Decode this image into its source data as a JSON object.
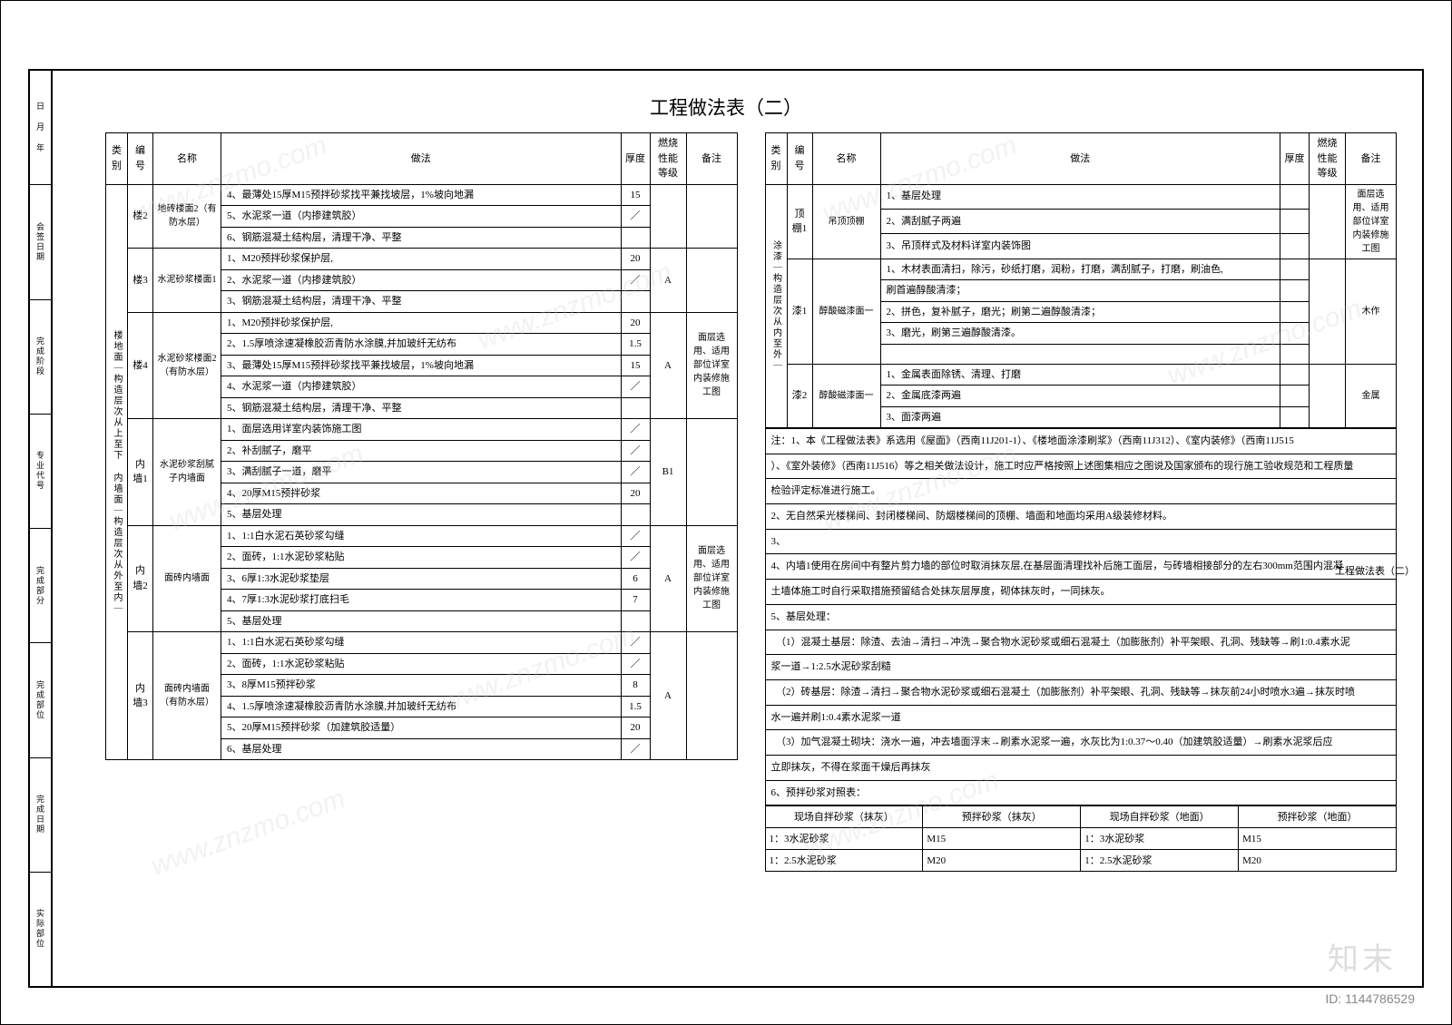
{
  "title": "工程做法表（二）",
  "rtitle": "工程做法表（二）",
  "id_mark": "ID: 1144786529",
  "logo": "知末",
  "side_labels": [
    "日 月 年",
    "会签日期",
    "完成阶段",
    "专业代号",
    "完成部分",
    "完成部位",
    "完成日期",
    "实际部位"
  ],
  "headers": {
    "cat": "类别",
    "num": "编号",
    "name": "名称",
    "method": "做法",
    "thk": "厚度",
    "fire": "燃烧性能等级",
    "note": "备注"
  },
  "left_cat": "楼地面｜构造层次从上至下 内墙面｜构造层次从外至内｜",
  "left": [
    {
      "num": "楼2",
      "name": "地砖楼面2（有防水层）",
      "rows": [
        {
          "m": "4、最薄处15厚M15预拌砂浆找平兼找坡层，1%坡向地漏",
          "t": "15"
        },
        {
          "m": "5、水泥浆一道（内掺建筑胶）",
          "t": "／"
        },
        {
          "m": "6、钢筋混凝土结构层，清理干净、平整",
          "t": ""
        }
      ],
      "fire": "",
      "note": ""
    },
    {
      "num": "楼3",
      "name": "水泥砂浆楼面1",
      "rows": [
        {
          "m": "1、M20预拌砂浆保护层,",
          "t": "20"
        },
        {
          "m": "2、水泥浆一道（内掺建筑胶）",
          "t": "／"
        },
        {
          "m": "3、钢筋混凝土结构层，清理干净、平整",
          "t": ""
        }
      ],
      "fire": "A",
      "note": ""
    },
    {
      "num": "楼4",
      "name": "水泥砂浆楼面2（有防水层）",
      "rows": [
        {
          "m": "1、M20预拌砂浆保护层,",
          "t": "20"
        },
        {
          "m": "2、1.5厚喷涂速凝橡胶沥青防水涂膜,并加玻纤无纺布",
          "t": "1.5"
        },
        {
          "m": "3、最薄处15厚M15预拌砂浆找平兼找坡层，1%坡向地漏",
          "t": "15"
        },
        {
          "m": "4、水泥浆一道（内掺建筑胶）",
          "t": "／"
        },
        {
          "m": "5、钢筋混凝土结构层，清理干净、平整",
          "t": ""
        }
      ],
      "fire": "A",
      "note": "面层选用、适用部位详室内装修施工图"
    },
    {
      "num": "内墙1",
      "name": "水泥砂浆刮腻子内墙面",
      "rows": [
        {
          "m": "1、面层选用详室内装饰施工图",
          "t": "／"
        },
        {
          "m": "2、补刮腻子，磨平",
          "t": "／"
        },
        {
          "m": "3、满刮腻子一道，磨平",
          "t": "／"
        },
        {
          "m": "4、20厚M15预拌砂浆",
          "t": "20"
        },
        {
          "m": "5、基层处理",
          "t": ""
        }
      ],
      "fire": "B1",
      "note": ""
    },
    {
      "num": "内墙2",
      "name": "面砖内墙面",
      "rows": [
        {
          "m": "1、1:1白水泥石英砂浆勾缝",
          "t": "／"
        },
        {
          "m": "2、面砖，1:1水泥砂浆粘贴",
          "t": "／"
        },
        {
          "m": "3、6厚1:3水泥砂浆垫层",
          "t": "6"
        },
        {
          "m": "4、7厚1:3水泥砂浆打底扫毛",
          "t": "7"
        },
        {
          "m": "5、基层处理",
          "t": ""
        }
      ],
      "fire": "A",
      "note": "面层选用、适用部位详室内装修施工图"
    },
    {
      "num": "内墙3",
      "name": "面砖内墙面（有防水层）",
      "rows": [
        {
          "m": "1、1:1白水泥石英砂浆勾缝",
          "t": "／"
        },
        {
          "m": "2、面砖，1:1水泥砂浆粘贴",
          "t": "／"
        },
        {
          "m": "3、8厚M15预拌砂浆",
          "t": "8"
        },
        {
          "m": "4、1.5厚喷涂速凝橡胶沥青防水涂膜,并加玻纤无纺布",
          "t": "1.5"
        },
        {
          "m": "5、20厚M15预拌砂浆（加建筑胶适量）",
          "t": "20"
        },
        {
          "m": "6、基层处理",
          "t": "／"
        }
      ],
      "fire": "A",
      "note": ""
    }
  ],
  "right_cat": "涂漆｜构造层次从内至外｜",
  "right": [
    {
      "num": "顶棚1",
      "name": "吊顶顶棚",
      "rows": [
        {
          "m": "1、基层处理",
          "t": ""
        },
        {
          "m": "2、满刮腻子两遍",
          "t": ""
        },
        {
          "m": "3、吊顶样式及材料详室内装饰图",
          "t": ""
        }
      ],
      "fire": "",
      "note": "面层选用、适用部位详室内装修施工图"
    },
    {
      "num": "漆1",
      "name": "醇酸磁漆面一",
      "rows": [
        {
          "m": "1、木材表面清扫，除污，砂纸打磨，润粉，打磨，满刮腻子，打磨，刷油色,",
          "t": ""
        },
        {
          "m": "刷首遍醇酸清漆；",
          "t": ""
        },
        {
          "m": "2、拼色，复补腻子，磨光；刷第二遍醇酸清漆；",
          "t": ""
        },
        {
          "m": "3、磨光，刷第三遍醇酸清漆。",
          "t": ""
        },
        {
          "m": "",
          "t": ""
        }
      ],
      "fire": "",
      "note": "木作"
    },
    {
      "num": "漆2",
      "name": "醇酸磁漆面一",
      "rows": [
        {
          "m": "1、金属表面除锈、清理、打磨",
          "t": ""
        },
        {
          "m": "2、金属底漆两遍",
          "t": ""
        },
        {
          "m": "3、面漆两遍",
          "t": ""
        }
      ],
      "fire": "",
      "note": "金属"
    }
  ],
  "notes": [
    "注：1、本《工程做法表》系选用《屋面》（西南11J201-1）、《楼地面涂漆刷浆》（西南11J312）、《室内装修》（西南11J515",
    "）、《室外装修》（西南11J516）等之相关做法设计，施工时应严格按照上述图集相应之图说及国家颁布的现行施工验收规范和工程质量",
    "检验评定标准进行施工。",
    "2、无自然采光楼梯间、封闭楼梯间、防烟楼梯间的顶棚、墙面和地面均采用A级装修材料。",
    "3、",
    "4、内墙1使用在房间中有整片剪力墙的部位时取消抹灰层,在基层面清理找补后施工面层，与砖墙相接部分的左右300mm范围内混凝",
    "土墙体施工时自行采取措施预留结合处抹灰层厚度，砌体抹灰时，一同抹灰。",
    "5、基层处理：",
    "　（1）混凝土基层：除渣、去油→清扫→冲洗→聚合物水泥砂浆或细石混凝土（加膨胀剂）补平架眼、孔洞、残缺等→刷1:0.4素水泥",
    "浆一道→1:2.5水泥砂浆刮糙",
    "　（2）砖基层：除渣→清扫→聚合物水泥砂浆或细石混凝土（加膨胀剂）补平架眼、孔洞、残缺等→抹灰前24小时喷水3遍→抹灰时喷",
    "水一遍并刷1:0.4素水泥浆一道",
    "　（3）加气混凝土砌块：浇水一遍，冲去墙面浮末→刷素水泥浆一遍，水灰比为1:0.37～0.40（加建筑胶适量）→刷素水泥浆后应",
    "立即抹灰，不得在浆面干燥后再抹灰",
    "6、预拌砂浆对照表："
  ],
  "cmp": {
    "h": [
      "现场自拌砂浆（抹灰）",
      "预拌砂浆（抹灰）",
      "现场自拌砂浆（地面）",
      "预拌砂浆（地面）"
    ],
    "r1": [
      "1：3水泥砂浆",
      "M15",
      "1：3水泥砂浆",
      "M15"
    ],
    "r2": [
      "1：2.5水泥砂浆",
      "M20",
      "1：2.5水泥砂浆",
      "M20"
    ]
  }
}
